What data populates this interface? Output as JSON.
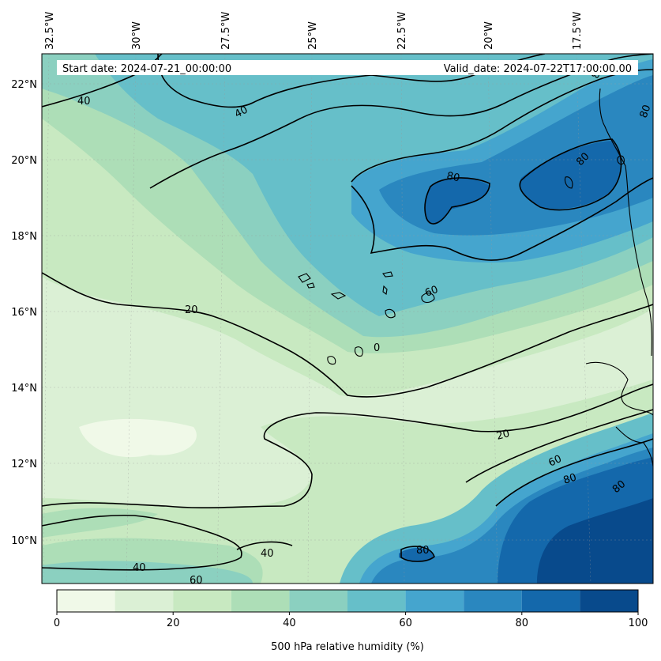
{
  "header": {
    "start_date": "Start date: 2024-07-21_00:00:00",
    "valid_date": "Valid_date: 2024-07-22T17:00:00.00"
  },
  "axes": {
    "lon_labels": [
      "32.5°W",
      "30°W",
      "27.5°W",
      "25°W",
      "22.5°W",
      "20°W",
      "17.5°W"
    ],
    "lat_labels": [
      "22°N",
      "20°N",
      "18°N",
      "16°N",
      "14°N",
      "12°N",
      "10°N"
    ]
  },
  "contour_labels": [
    "40",
    "40",
    "80",
    "80",
    "20",
    "60",
    "0",
    "20",
    "60",
    "80",
    "80",
    "40",
    "40",
    "60",
    "80",
    "80",
    "80"
  ],
  "colorbar": {
    "label": "500 hPa relative humidity (%)",
    "ticks": [
      "0",
      "20",
      "40",
      "60",
      "80",
      "100"
    ],
    "levels": [
      0,
      10,
      20,
      30,
      40,
      50,
      60,
      70,
      80,
      90,
      100
    ],
    "colors": [
      "#f0f9e8",
      "#dbf0d5",
      "#c8e9c1",
      "#addeb7",
      "#8bd0c0",
      "#66bfc9",
      "#45a5ce",
      "#2a87bf",
      "#1468ab",
      "#084a8c"
    ]
  }
}
